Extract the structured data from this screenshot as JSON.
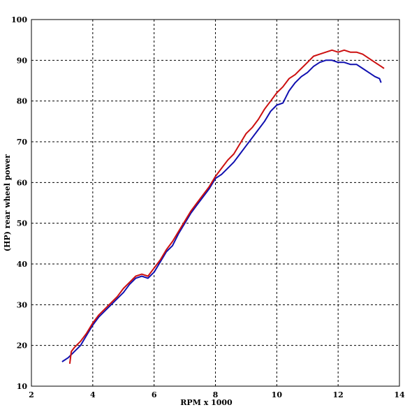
{
  "chart_data": {
    "type": "line",
    "title": "",
    "xlabel": "RPM x 1000",
    "ylabel": "(HP) rear wheel power",
    "xlim": [
      2,
      14
    ],
    "ylim": [
      10,
      100
    ],
    "xticks": [
      "2",
      "4",
      "6",
      "8",
      "10",
      "12",
      "14"
    ],
    "yticks": [
      "10",
      "20",
      "30",
      "40",
      "50",
      "60",
      "70",
      "80",
      "90",
      "100"
    ],
    "grid": true,
    "legend": "none",
    "series": [
      {
        "color": "#1010b0",
        "x": [
          3.0,
          3.2,
          3.4,
          3.6,
          3.8,
          4.0,
          4.2,
          4.4,
          4.6,
          4.8,
          5.0,
          5.2,
          5.4,
          5.6,
          5.8,
          6.0,
          6.2,
          6.4,
          6.6,
          6.8,
          7.0,
          7.2,
          7.4,
          7.6,
          7.8,
          8.0,
          8.2,
          8.4,
          8.6,
          8.8,
          9.0,
          9.2,
          9.4,
          9.6,
          9.8,
          10.0,
          10.2,
          10.4,
          10.6,
          10.8,
          11.0,
          11.2,
          11.4,
          11.6,
          11.8,
          12.0,
          12.2,
          12.4,
          12.6,
          12.8,
          13.0,
          13.2,
          13.35,
          13.4
        ],
        "y": [
          16,
          17,
          18.5,
          20,
          22.5,
          25,
          27,
          28.5,
          30,
          31.5,
          33,
          35,
          36.5,
          37,
          36.5,
          38,
          40.5,
          43,
          44.5,
          47.5,
          50,
          52.5,
          54.5,
          56.5,
          58.5,
          61,
          62,
          63.5,
          65,
          67,
          69,
          71,
          73,
          75,
          77.5,
          79,
          79.5,
          82.5,
          84.5,
          86,
          87,
          88.5,
          89.5,
          90,
          90,
          89.5,
          89.5,
          89,
          89,
          88,
          87,
          86,
          85.5,
          84.5
        ]
      },
      {
        "color": "#cc1010",
        "x": [
          3.25,
          3.3,
          3.4,
          3.6,
          3.8,
          4.0,
          4.2,
          4.4,
          4.6,
          4.8,
          5.0,
          5.2,
          5.4,
          5.6,
          5.8,
          6.0,
          6.2,
          6.4,
          6.6,
          6.8,
          7.0,
          7.2,
          7.4,
          7.6,
          7.8,
          8.0,
          8.2,
          8.4,
          8.6,
          8.8,
          9.0,
          9.2,
          9.4,
          9.6,
          9.8,
          10.0,
          10.2,
          10.4,
          10.6,
          10.8,
          11.0,
          11.2,
          11.4,
          11.6,
          11.8,
          12.0,
          12.2,
          12.4,
          12.6,
          12.8,
          13.0,
          13.2,
          13.4,
          13.5
        ],
        "y": [
          15.5,
          18.5,
          19.5,
          21,
          23,
          25.5,
          27.5,
          29,
          30.5,
          32,
          34,
          35.5,
          37,
          37.5,
          37,
          39,
          41,
          43.5,
          45.5,
          48,
          50.5,
          53,
          55,
          57,
          59,
          61.5,
          63.5,
          65.5,
          67,
          69.5,
          72,
          73.5,
          75.5,
          78,
          80,
          82,
          83.5,
          85.5,
          86.5,
          88,
          89.5,
          91,
          91.5,
          92,
          92.5,
          92,
          92.5,
          92,
          92,
          91.5,
          90.5,
          89.5,
          88.5,
          88
        ]
      }
    ]
  }
}
